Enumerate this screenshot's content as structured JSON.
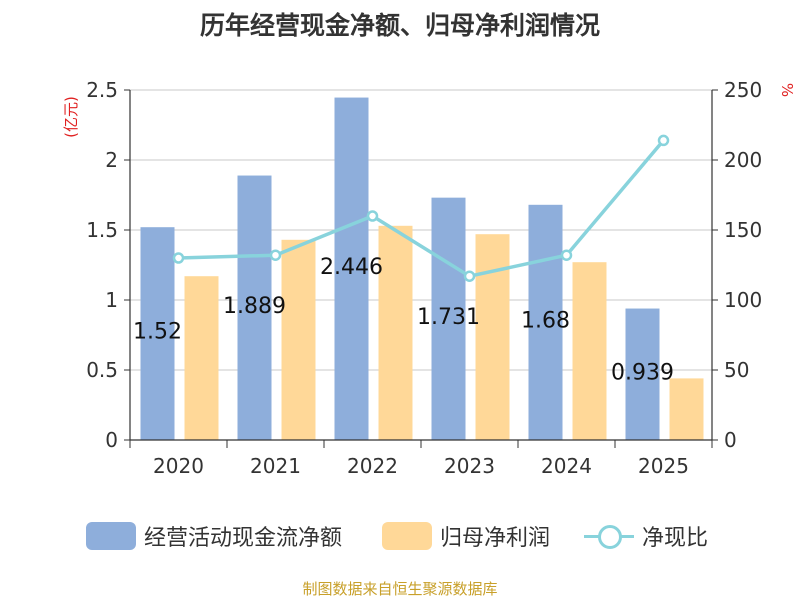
{
  "chart_data": {
    "type": "bar",
    "title": "历年经营现金净额、归母净利润情况",
    "categories": [
      "2020",
      "2021",
      "2022",
      "2023",
      "2024",
      "2025"
    ],
    "series": [
      {
        "name": "经营活动现金流净额",
        "type": "bar",
        "axis": "left",
        "values": [
          1.52,
          1.889,
          2.446,
          1.731,
          1.68,
          0.939
        ],
        "data_labels": [
          "1.52",
          "1.889",
          "2.446",
          "1.731",
          "1.68",
          "0.939"
        ]
      },
      {
        "name": "归母净利润",
        "type": "bar",
        "axis": "left",
        "values": [
          1.17,
          1.43,
          1.53,
          1.47,
          1.27,
          0.44
        ]
      },
      {
        "name": "净现比",
        "type": "line",
        "axis": "right",
        "values": [
          130,
          132,
          160,
          117,
          132,
          214
        ]
      }
    ],
    "y_left": {
      "label": "(亿元)",
      "min": 0,
      "max": 2.5,
      "ticks": [
        "0",
        "0.5",
        "1",
        "1.5",
        "2",
        "2.5"
      ]
    },
    "y_right": {
      "label": "%",
      "min": 0,
      "max": 250,
      "ticks": [
        "0",
        "50",
        "100",
        "150",
        "200",
        "250"
      ]
    },
    "grid": true,
    "legend_position": "bottom",
    "colors": {
      "bar1": "#8eaedb",
      "bar2": "#ffd898",
      "line": "#88d3dc",
      "axis_label": "#e02020",
      "text": "#333333",
      "grid": "#c8c8c8"
    }
  },
  "legend": [
    {
      "label": "经营活动现金流净额"
    },
    {
      "label": "归母净利润"
    },
    {
      "label": "净现比"
    }
  ],
  "source": "制图数据来自恒生聚源数据库"
}
